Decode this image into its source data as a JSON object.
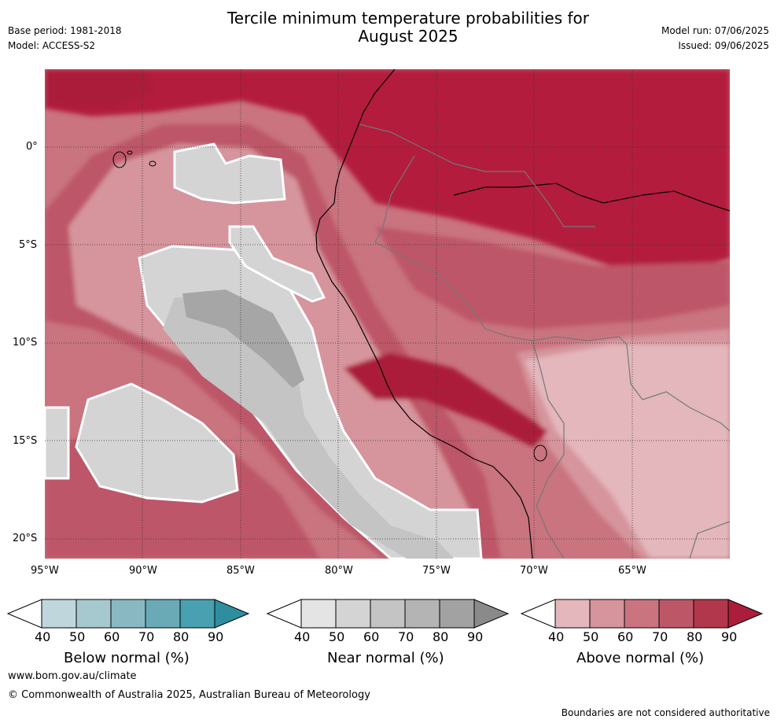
{
  "header": {
    "base_period": "Base period: 1981-2018",
    "model": "Model: ACCESS-S2",
    "title_line1": "Tercile minimum temperature probabilities for",
    "title_line2": "August 2025",
    "model_run": "Model run: 07/06/2025",
    "issued": "Issued: 09/06/2025"
  },
  "map": {
    "lat_labels": [
      "0°",
      "5°S",
      "10°S",
      "15°S",
      "20°S"
    ],
    "lon_labels": [
      "95°W",
      "90°W",
      "85°W",
      "80°W",
      "75°W",
      "70°W",
      "65°W"
    ],
    "lat_range": [
      -21,
      4
    ],
    "lon_range": [
      -95,
      -60
    ],
    "region": "Western South America and eastern Pacific Ocean"
  },
  "colorbars": [
    {
      "label": "Below normal (%)",
      "ticks": [
        "40",
        "50",
        "60",
        "70",
        "80",
        "90"
      ],
      "colors": [
        "#ffffff",
        "#bfd6dc",
        "#a6c9d0",
        "#89b8c3",
        "#6aaab6",
        "#48a0b0",
        "#2e8ea0"
      ]
    },
    {
      "label": "Near normal (%)",
      "ticks": [
        "40",
        "50",
        "60",
        "70",
        "80",
        "90"
      ],
      "colors": [
        "#ffffff",
        "#e4e4e4",
        "#d4d4d4",
        "#c4c4c4",
        "#b4b4b4",
        "#a2a2a2",
        "#8a8a8a"
      ]
    },
    {
      "label": "Above normal (%)",
      "ticks": [
        "40",
        "50",
        "60",
        "70",
        "80",
        "90"
      ],
      "colors": [
        "#ffffff",
        "#e3b7bc",
        "#d6949c",
        "#c9747f",
        "#bd5767",
        "#b3374c",
        "#ab1d3a"
      ]
    }
  ],
  "footer": {
    "url": "www.bom.gov.au/climate",
    "copyright": "© Commonwealth of Australia 2025, Australian Bureau of Meteorology",
    "disclaimer": "Boundaries are not considered authoritative"
  }
}
